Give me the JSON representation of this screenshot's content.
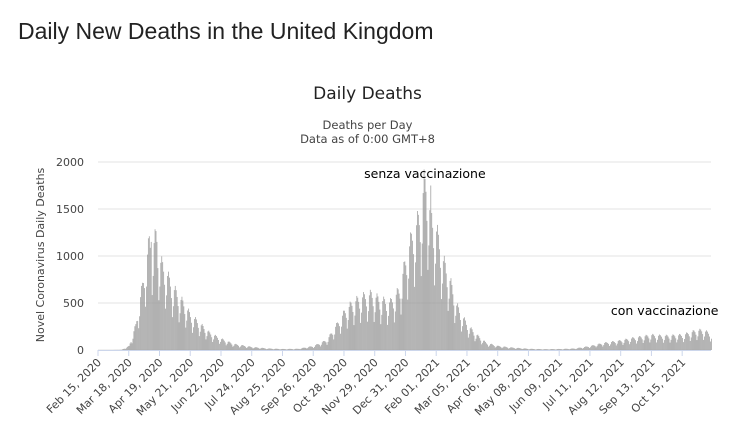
{
  "page": {
    "title": "Daily New Deaths in the United Kingdom"
  },
  "chart_data": {
    "type": "bar",
    "title": "Daily Deaths",
    "subtitle": [
      "Deaths per Day",
      "Data as of 0:00 GMT+8"
    ],
    "xlabel": "",
    "ylabel": "Novel Coronavirus Daily Deaths",
    "ylim": [
      0,
      2000
    ],
    "yticks": [
      0,
      500,
      1000,
      1500,
      2000
    ],
    "grid": true,
    "legend": "none",
    "bar_color": "#999999",
    "x_start": "2020-02-15",
    "x_end": "2021-11-14",
    "xticks": [
      "Feb 15, 2020",
      "Mar 18, 2020",
      "Apr 19, 2020",
      "May 21, 2020",
      "Jun 22, 2020",
      "Jul 24, 2020",
      "Aug 25, 2020",
      "Sep 26, 2020",
      "Oct 28, 2020",
      "Nov 29, 2020",
      "Dec 31, 2020",
      "Feb 01, 2021",
      "Mar 05, 2021",
      "Apr 06, 2021",
      "May 08, 2021",
      "Jun 09, 2021",
      "Jul 11, 2021",
      "Aug 12, 2021",
      "Sep 13, 2021",
      "Oct 15, 2021"
    ],
    "series": [
      {
        "points": [
          [
            "2020-02-15",
            0
          ],
          [
            "2020-03-01",
            0
          ],
          [
            "2020-03-10",
            2
          ],
          [
            "2020-03-18",
            40
          ],
          [
            "2020-03-25",
            250
          ],
          [
            "2020-04-01",
            650
          ],
          [
            "2020-04-05",
            900
          ],
          [
            "2020-04-08",
            1100
          ],
          [
            "2020-04-12",
            1050
          ],
          [
            "2020-04-15",
            1150
          ],
          [
            "2020-04-19",
            900
          ],
          [
            "2020-04-25",
            800
          ],
          [
            "2020-05-01",
            650
          ],
          [
            "2020-05-08",
            550
          ],
          [
            "2020-05-15",
            450
          ],
          [
            "2020-05-21",
            350
          ],
          [
            "2020-06-01",
            250
          ],
          [
            "2020-06-10",
            170
          ],
          [
            "2020-06-22",
            110
          ],
          [
            "2020-07-05",
            60
          ],
          [
            "2020-07-24",
            30
          ],
          [
            "2020-08-10",
            15
          ],
          [
            "2020-08-25",
            10
          ],
          [
            "2020-09-10",
            12
          ],
          [
            "2020-09-26",
            40
          ],
          [
            "2020-10-10",
            100
          ],
          [
            "2020-10-20",
            250
          ],
          [
            "2020-10-28",
            380
          ],
          [
            "2020-11-05",
            470
          ],
          [
            "2020-11-15",
            530
          ],
          [
            "2020-11-25",
            560
          ],
          [
            "2020-12-05",
            500
          ],
          [
            "2020-12-15",
            480
          ],
          [
            "2020-12-24",
            600
          ],
          [
            "2020-12-31",
            900
          ],
          [
            "2021-01-08",
            1200
          ],
          [
            "2021-01-15",
            1350
          ],
          [
            "2021-01-20",
            1750
          ],
          [
            "2021-01-26",
            1350
          ],
          [
            "2021-02-01",
            1200
          ],
          [
            "2021-02-08",
            900
          ],
          [
            "2021-02-15",
            700
          ],
          [
            "2021-02-22",
            450
          ],
          [
            "2021-03-01",
            320
          ],
          [
            "2021-03-05",
            250
          ],
          [
            "2021-03-15",
            150
          ],
          [
            "2021-03-25",
            70
          ],
          [
            "2021-04-06",
            40
          ],
          [
            "2021-04-20",
            25
          ],
          [
            "2021-05-08",
            12
          ],
          [
            "2021-05-25",
            8
          ],
          [
            "2021-06-09",
            10
          ],
          [
            "2021-06-25",
            15
          ],
          [
            "2021-07-11",
            40
          ],
          [
            "2021-07-25",
            70
          ],
          [
            "2021-08-12",
            95
          ],
          [
            "2021-08-25",
            120
          ],
          [
            "2021-09-13",
            150
          ],
          [
            "2021-09-25",
            140
          ],
          [
            "2021-10-15",
            150
          ],
          [
            "2021-10-28",
            190
          ],
          [
            "2021-11-05",
            200
          ],
          [
            "2021-11-14",
            160
          ]
        ],
        "peaks": [
          [
            "2020-04-10",
            1150
          ],
          [
            "2020-04-16",
            1150
          ],
          [
            "2021-01-20",
            1820
          ],
          [
            "2021-01-26",
            1750
          ]
        ]
      }
    ],
    "annotations": [
      {
        "text": "senza vaccinazione",
        "x": "2021-01-20",
        "y": 1880
      },
      {
        "text": "con vaccinazione",
        "x": "2021-09-27",
        "y": 420
      }
    ]
  }
}
